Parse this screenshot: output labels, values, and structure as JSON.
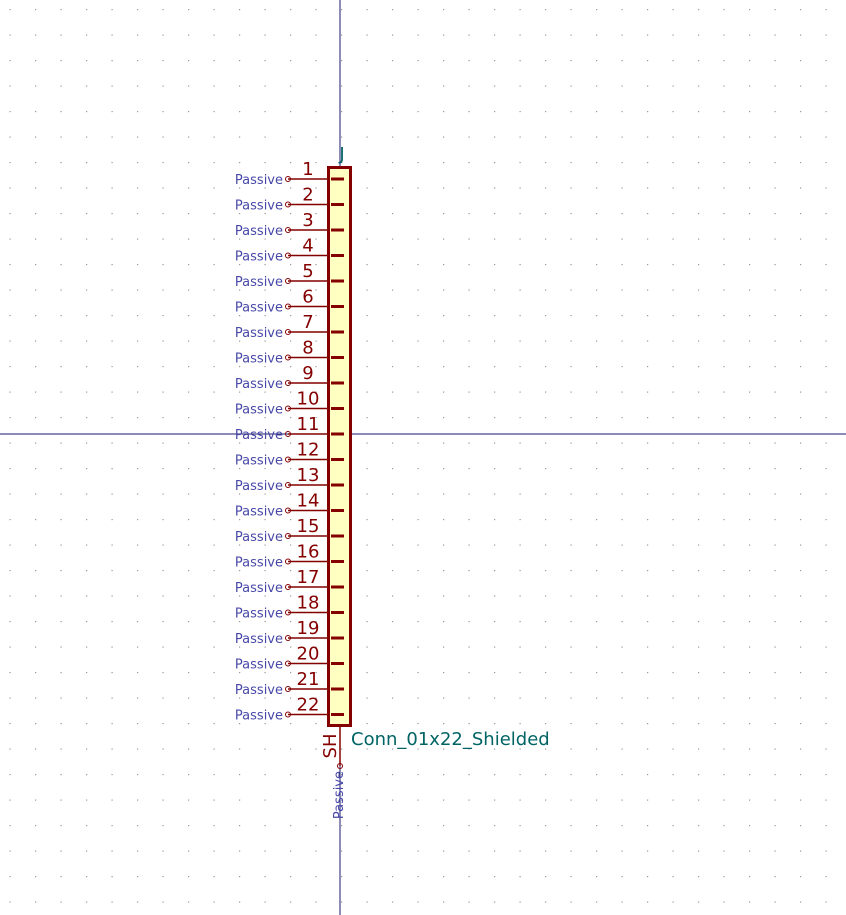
{
  "symbol": {
    "reference": "J",
    "value": "Conn_01x22_Shielded",
    "pins": [
      {
        "number": "1",
        "type": "Passive"
      },
      {
        "number": "2",
        "type": "Passive"
      },
      {
        "number": "3",
        "type": "Passive"
      },
      {
        "number": "4",
        "type": "Passive"
      },
      {
        "number": "5",
        "type": "Passive"
      },
      {
        "number": "6",
        "type": "Passive"
      },
      {
        "number": "7",
        "type": "Passive"
      },
      {
        "number": "8",
        "type": "Passive"
      },
      {
        "number": "9",
        "type": "Passive"
      },
      {
        "number": "10",
        "type": "Passive"
      },
      {
        "number": "11",
        "type": "Passive"
      },
      {
        "number": "12",
        "type": "Passive"
      },
      {
        "number": "13",
        "type": "Passive"
      },
      {
        "number": "14",
        "type": "Passive"
      },
      {
        "number": "15",
        "type": "Passive"
      },
      {
        "number": "16",
        "type": "Passive"
      },
      {
        "number": "17",
        "type": "Passive"
      },
      {
        "number": "18",
        "type": "Passive"
      },
      {
        "number": "19",
        "type": "Passive"
      },
      {
        "number": "20",
        "type": "Passive"
      },
      {
        "number": "21",
        "type": "Passive"
      },
      {
        "number": "22",
        "type": "Passive"
      }
    ],
    "shield_pin": {
      "number": "SH",
      "type": "Passive"
    }
  }
}
